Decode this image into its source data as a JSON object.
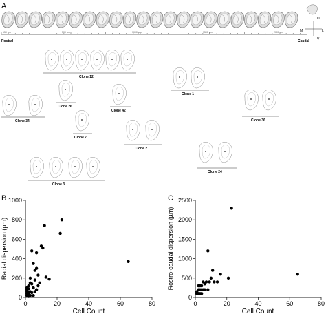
{
  "panel_a": {
    "label": "A",
    "ruler_ticks": [
      "150 µm",
      "500 µm",
      "1000 µm",
      "1500 µm",
      "2000 µm"
    ],
    "axis_ends": {
      "left": "Rostral",
      "right": "Caudal"
    },
    "orientation": {
      "d": "D",
      "m": "M",
      "l": "L",
      "v": "V"
    },
    "clones": [
      {
        "label": "Clone 12",
        "sections": 6
      },
      {
        "label": "Clone 1",
        "sections": 2
      },
      {
        "label": "Clone 34",
        "sections": 2
      },
      {
        "label": "Clone 26",
        "sections": 1
      },
      {
        "label": "Clone 42",
        "sections": 1
      },
      {
        "label": "Clone 36",
        "sections": 2
      },
      {
        "label": "Clone 7",
        "sections": 1
      },
      {
        "label": "Clone 2",
        "sections": 2
      },
      {
        "label": "Clone 3",
        "sections": 4
      },
      {
        "label": "Clone 24",
        "sections": 2
      }
    ]
  },
  "chart_data": [
    {
      "panel": "B",
      "type": "scatter",
      "xlabel": "Cell Count",
      "ylabel": "Radial dispersion (µm)",
      "xlim": [
        0,
        80
      ],
      "ylim": [
        0,
        1000
      ],
      "xticks": [
        "0",
        "20",
        "40",
        "60",
        "80"
      ],
      "yticks": [
        "0",
        "200",
        "400",
        "600",
        "800",
        "1000"
      ],
      "points": [
        [
          1,
          20
        ],
        [
          1,
          40
        ],
        [
          1,
          60
        ],
        [
          1,
          80
        ],
        [
          1,
          100
        ],
        [
          2,
          10
        ],
        [
          2,
          30
        ],
        [
          2,
          50
        ],
        [
          2,
          90
        ],
        [
          2,
          120
        ],
        [
          3,
          20
        ],
        [
          3,
          60
        ],
        [
          3,
          150
        ],
        [
          3,
          200
        ],
        [
          4,
          50
        ],
        [
          4,
          140
        ],
        [
          4,
          480
        ],
        [
          5,
          20
        ],
        [
          5,
          100
        ],
        [
          5,
          350
        ],
        [
          6,
          60
        ],
        [
          6,
          180
        ],
        [
          6,
          280
        ],
        [
          7,
          80
        ],
        [
          7,
          300
        ],
        [
          7,
          460
        ],
        [
          8,
          120
        ],
        [
          8,
          230
        ],
        [
          9,
          150
        ],
        [
          10,
          530
        ],
        [
          11,
          510
        ],
        [
          12,
          740
        ],
        [
          13,
          210
        ],
        [
          15,
          190
        ],
        [
          22,
          660
        ],
        [
          23,
          800
        ],
        [
          65,
          370
        ]
      ]
    },
    {
      "panel": "C",
      "type": "scatter",
      "xlabel": "Cell Count",
      "ylabel": "Rostro-caudal dispersion (µm)",
      "xlim": [
        0,
        80
      ],
      "ylim": [
        0,
        2500
      ],
      "xticks": [
        "0",
        "20",
        "40",
        "60",
        "80"
      ],
      "yticks": [
        "0",
        "500",
        "1000",
        "1500",
        "2000",
        "2500"
      ],
      "points": [
        [
          1,
          100
        ],
        [
          1,
          150
        ],
        [
          2,
          100
        ],
        [
          2,
          200
        ],
        [
          2,
          300
        ],
        [
          3,
          100
        ],
        [
          3,
          200
        ],
        [
          3,
          300
        ],
        [
          4,
          100
        ],
        [
          4,
          200
        ],
        [
          4,
          300
        ],
        [
          5,
          200
        ],
        [
          5,
          400
        ],
        [
          6,
          200
        ],
        [
          6,
          350
        ],
        [
          7,
          400
        ],
        [
          8,
          200
        ],
        [
          8,
          1200
        ],
        [
          9,
          400
        ],
        [
          10,
          500
        ],
        [
          11,
          700
        ],
        [
          12,
          400
        ],
        [
          14,
          400
        ],
        [
          16,
          600
        ],
        [
          21,
          500
        ],
        [
          23,
          2300
        ],
        [
          65,
          600
        ]
      ]
    }
  ]
}
